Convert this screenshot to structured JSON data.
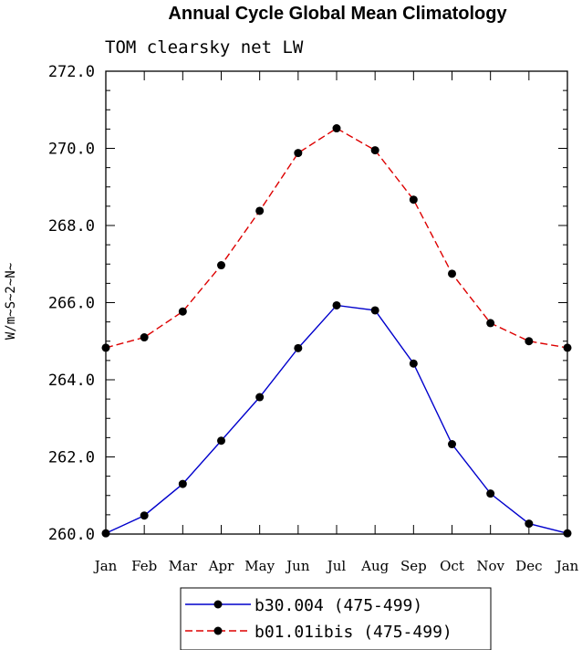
{
  "chart_data": {
    "type": "line",
    "title": "Annual Cycle Global Mean Climatology",
    "subtitle": "TOM clearsky net LW",
    "ylabel": "W/m~S~2~N~",
    "xlabel": "",
    "categories": [
      "Jan",
      "Feb",
      "Mar",
      "Apr",
      "May",
      "Jun",
      "Jul",
      "Aug",
      "Sep",
      "Oct",
      "Nov",
      "Dec",
      "Jan"
    ],
    "ylim": [
      260.0,
      272.0
    ],
    "yticks": [
      "260.0",
      "262.0",
      "264.0",
      "266.0",
      "268.0",
      "270.0",
      "272.0"
    ],
    "grid": false,
    "legend_position": "bottom-center",
    "series": [
      {
        "name": "b30.004 (475-499)",
        "color": "#0000cc",
        "line_style": "solid",
        "marker": "filled-circle",
        "values": [
          260.02,
          260.48,
          261.3,
          262.42,
          263.55,
          264.82,
          265.93,
          265.8,
          264.42,
          262.33,
          261.05,
          260.27,
          260.02
        ]
      },
      {
        "name": "b01.01ibis (475-499)",
        "color": "#dd0000",
        "line_style": "dashed",
        "marker": "filled-circle",
        "values": [
          264.83,
          265.1,
          265.77,
          266.97,
          268.38,
          269.88,
          270.52,
          269.95,
          268.67,
          266.75,
          265.47,
          265.0,
          264.83
        ]
      }
    ]
  }
}
